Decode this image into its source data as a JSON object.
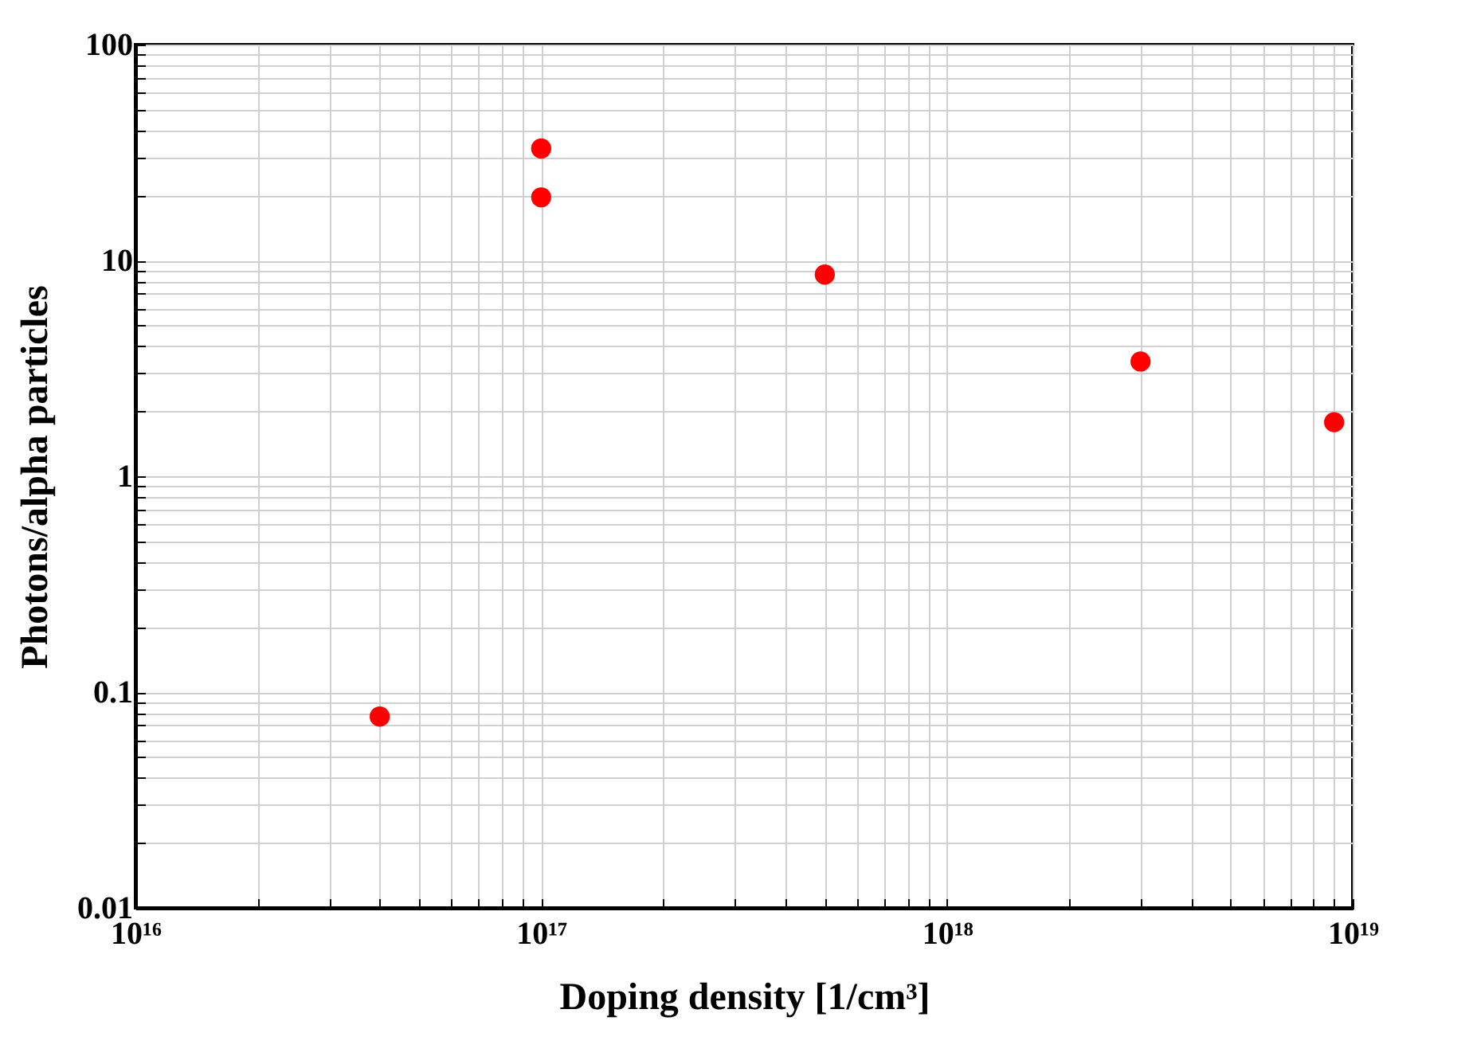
{
  "chart_data": {
    "type": "scatter",
    "xlabel": "Doping density [1/cm³]",
    "ylabel": "Photons/alpha particles",
    "log": "xy",
    "grid": true,
    "marker": "circle",
    "x": [
      4e+16,
      1e+17,
      1e+17,
      5e+17,
      3e+18,
      9e+18
    ],
    "series": [
      {
        "color": "#ff0000",
        "values": [
          0.077,
          33,
          19.6,
          8.6,
          3.4,
          1.78
        ]
      }
    ],
    "xlim": [
      1e+16,
      1e+19
    ],
    "xticks": [
      {
        "value": 1e+16,
        "label": "10¹⁶"
      },
      {
        "value": 2e+16,
        "label": null
      },
      {
        "value": 3e+16,
        "label": null
      },
      {
        "value": 4e+16,
        "label": null
      },
      {
        "value": 5e+16,
        "label": null
      },
      {
        "value": 6e+16,
        "label": null
      },
      {
        "value": 7e+16,
        "label": null
      },
      {
        "value": 8e+16,
        "label": null
      },
      {
        "value": 9e+16,
        "label": null
      },
      {
        "value": 1e+17,
        "label": "10¹⁷"
      },
      {
        "value": 2e+17,
        "label": null
      },
      {
        "value": 3e+17,
        "label": null
      },
      {
        "value": 4e+17,
        "label": null
      },
      {
        "value": 5e+17,
        "label": null
      },
      {
        "value": 6e+17,
        "label": null
      },
      {
        "value": 7e+17,
        "label": null
      },
      {
        "value": 8e+17,
        "label": null
      },
      {
        "value": 9e+17,
        "label": null
      },
      {
        "value": 1e+18,
        "label": "10¹⁸"
      },
      {
        "value": 2e+18,
        "label": null
      },
      {
        "value": 3e+18,
        "label": null
      },
      {
        "value": 4e+18,
        "label": null
      },
      {
        "value": 5e+18,
        "label": null
      },
      {
        "value": 6e+18,
        "label": null
      },
      {
        "value": 7e+18,
        "label": null
      },
      {
        "value": 8e+18,
        "label": null
      },
      {
        "value": 9e+18,
        "label": null
      },
      {
        "value": 1e+19,
        "label": "10¹⁹"
      }
    ],
    "ylim": [
      0.01,
      100
    ],
    "yticks": [
      0.01,
      {
        "value": 0.02,
        "label": null
      },
      {
        "value": 0.03,
        "label": null
      },
      {
        "value": 0.04,
        "label": null
      },
      {
        "value": 0.05,
        "label": null
      },
      {
        "value": 0.06,
        "label": null
      },
      {
        "value": 0.07,
        "label": null
      },
      {
        "value": 0.08,
        "label": null
      },
      {
        "value": 0.09,
        "label": null
      },
      0.1,
      {
        "value": 0.2,
        "label": null
      },
      {
        "value": 0.3,
        "label": null
      },
      {
        "value": 0.4,
        "label": null
      },
      {
        "value": 0.5,
        "label": null
      },
      {
        "value": 0.6,
        "label": null
      },
      {
        "value": 0.7,
        "label": null
      },
      {
        "value": 0.8,
        "label": null
      },
      {
        "value": 0.9,
        "label": null
      },
      1,
      {
        "value": 2,
        "label": null
      },
      {
        "value": 3,
        "label": null
      },
      {
        "value": 4,
        "label": null
      },
      {
        "value": 5,
        "label": null
      },
      {
        "value": 6,
        "label": null
      },
      {
        "value": 7,
        "label": null
      },
      {
        "value": 8,
        "label": null
      },
      {
        "value": 9,
        "label": null
      },
      10,
      {
        "value": 20,
        "label": null
      },
      {
        "value": 30,
        "label": null
      },
      {
        "value": 40,
        "label": null
      },
      {
        "value": 50,
        "label": null
      },
      {
        "value": 60,
        "label": null
      },
      {
        "value": 70,
        "label": null
      },
      {
        "value": 80,
        "label": null
      },
      {
        "value": 90,
        "label": null
      },
      100
    ]
  }
}
